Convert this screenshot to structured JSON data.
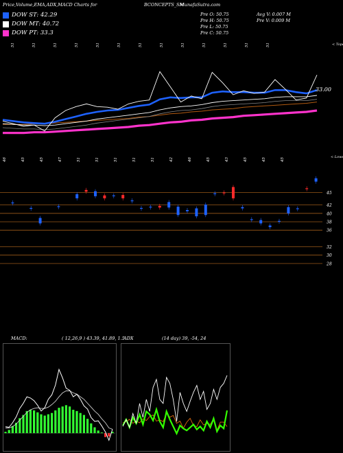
{
  "header": {
    "title": "Price,Volume,EMA,ADX,MACD Charts for",
    "symbol": "BCONCEPTS_SM",
    "site": "MunafaSutra.com",
    "prev_open": "Pre  O: 50.75",
    "prev_high": "Pre  H: 50.75",
    "prev_low": "Pre  L: 50.75",
    "prev_close": "Pre  C: 50.75",
    "avg_vol": "Avg V: 0.007 M",
    "pre_vol": "Pre  V: 0.009 M"
  },
  "legend": [
    {
      "label": "DOW ST: 42.29",
      "color": "#1e62ff"
    },
    {
      "label": "DOW MT: 40.72",
      "color": "#ffffff"
    },
    {
      "label": "DOW PT: 33.3",
      "color": "#ff33cc"
    }
  ],
  "colors": {
    "bg": "#000000",
    "up": "#ff2a2a",
    "down": "#1e62ff",
    "sma": "#ffffff",
    "ema_long": "#ff33cc",
    "ma_brown": "#b25a10",
    "macd_hist": "#33ff33",
    "macd_neg": "#ff3333",
    "grid": "#b86a1e"
  },
  "chart_data": [
    {
      "type": "line",
      "name": "price-ema",
      "title": "",
      "top_labels": [
        "51",
        "51",
        "51",
        "51",
        "51",
        "51",
        "51",
        "51",
        "51",
        "51",
        "51",
        "51",
        "51"
      ],
      "bottom_labels": [
        "46",
        "45",
        "45",
        "47",
        "51",
        "51",
        "51",
        "51",
        "51",
        "42",
        "46",
        "45",
        "43",
        "45",
        "45",
        "45"
      ],
      "top_axis_label": "< Tope",
      "bottom_axis_label": "< Lowes",
      "price_last_label": "33.00",
      "x": [
        0,
        1,
        2,
        3,
        4,
        5,
        6,
        7,
        8,
        9,
        10,
        11,
        12,
        13,
        14,
        15,
        16,
        17,
        18,
        19,
        20,
        21,
        22,
        23,
        24,
        25,
        26,
        27,
        28,
        29,
        30
      ],
      "series": [
        {
          "name": "price",
          "values": [
            41,
            40.6,
            40.2,
            40.4,
            39.5,
            41.5,
            42.6,
            43.2,
            43.6,
            43.2,
            43.1,
            42.8,
            43.6,
            44,
            44.2,
            48.5,
            46.2,
            43.9,
            44.8,
            44.4,
            48.4,
            46.8,
            45,
            45.6,
            45.2,
            45.4,
            47.3,
            45.8,
            44.2,
            44.5,
            48
          ]
        },
        {
          "name": "ema_st",
          "values": [
            41.2,
            41,
            40.8,
            40.7,
            40.6,
            40.9,
            41.3,
            41.7,
            42.1,
            42.4,
            42.6,
            42.7,
            43,
            43.3,
            43.5,
            44.3,
            44.6,
            44.5,
            44.6,
            44.6,
            45.3,
            45.5,
            45.4,
            45.4,
            45.3,
            45.3,
            45.7,
            45.7,
            45.4,
            45.2,
            45.7
          ]
        },
        {
          "name": "sma_mt",
          "values": [
            40.6,
            40.5,
            40.4,
            40.4,
            40.3,
            40.4,
            40.6,
            40.8,
            41,
            41.3,
            41.5,
            41.7,
            41.9,
            42.1,
            42.3,
            42.7,
            43,
            43.2,
            43.3,
            43.5,
            43.8,
            44,
            44.1,
            44.2,
            44.3,
            44.4,
            44.6,
            44.7,
            44.7,
            44.7,
            44.9
          ]
        },
        {
          "name": "ema_pt",
          "values": [
            39.2,
            39.2,
            39.2,
            39.3,
            39.3,
            39.4,
            39.5,
            39.6,
            39.7,
            39.8,
            39.9,
            40,
            40.1,
            40.3,
            40.4,
            40.6,
            40.8,
            40.9,
            41.1,
            41.2,
            41.4,
            41.5,
            41.6,
            41.8,
            41.9,
            42,
            42.1,
            42.2,
            42.3,
            42.4,
            42.6
          ]
        }
      ],
      "ylim": [
        37.5,
        50
      ]
    },
    {
      "type": "bar",
      "name": "candles",
      "title": "",
      "y_ticks": [
        "45",
        "42",
        "40",
        "38",
        "36",
        "32",
        "30",
        "28"
      ],
      "candles": [
        {
          "x": 1,
          "o": 42.6,
          "c": 42.4,
          "up": false
        },
        {
          "x": 3,
          "o": 41.3,
          "c": 41.1,
          "up": false
        },
        {
          "x": 4,
          "o": 38.9,
          "c": 37.6,
          "up": false
        },
        {
          "x": 6,
          "o": 41.7,
          "c": 41.5,
          "up": false
        },
        {
          "x": 8,
          "o": 44.6,
          "c": 43.6,
          "up": false
        },
        {
          "x": 9,
          "o": 45.2,
          "c": 45.6,
          "up": true
        },
        {
          "x": 10,
          "o": 45.3,
          "c": 44.1,
          "up": false
        },
        {
          "x": 11,
          "o": 44.3,
          "c": 43.6,
          "up": true
        },
        {
          "x": 12,
          "o": 44.3,
          "c": 44.1,
          "up": false
        },
        {
          "x": 13,
          "o": 44.4,
          "c": 43.6,
          "up": true
        },
        {
          "x": 14,
          "o": 43.1,
          "c": 42.9,
          "up": false
        },
        {
          "x": 15,
          "o": 41.3,
          "c": 41.1,
          "up": false
        },
        {
          "x": 16,
          "o": 41.6,
          "c": 41.4,
          "up": false
        },
        {
          "x": 17,
          "o": 41.4,
          "c": 41.8,
          "up": true
        },
        {
          "x": 18,
          "o": 42.7,
          "c": 41.4,
          "up": false
        },
        {
          "x": 19,
          "o": 41.6,
          "c": 39.6,
          "up": false
        },
        {
          "x": 20,
          "o": 40.8,
          "c": 40.5,
          "up": false
        },
        {
          "x": 21,
          "o": 41.2,
          "c": 39.3,
          "up": false
        },
        {
          "x": 22,
          "o": 42.1,
          "c": 39.6,
          "up": false
        },
        {
          "x": 23,
          "o": 44.8,
          "c": 44.6,
          "up": false
        },
        {
          "x": 24,
          "o": 45.0,
          "c": 44.8,
          "up": true
        },
        {
          "x": 25,
          "o": 46.3,
          "c": 43.6,
          "up": true
        },
        {
          "x": 26,
          "o": 41.5,
          "c": 41.2,
          "up": false
        },
        {
          "x": 27,
          "o": 38.6,
          "c": 38.4,
          "up": false
        },
        {
          "x": 28,
          "o": 38.4,
          "c": 37.6,
          "up": false
        },
        {
          "x": 29,
          "o": 37.1,
          "c": 36.7,
          "up": false
        },
        {
          "x": 30,
          "o": 38.2,
          "c": 38.0,
          "up": false
        },
        {
          "x": 31,
          "o": 41.5,
          "c": 40.0,
          "up": false
        },
        {
          "x": 32,
          "o": 41.2,
          "c": 41.0,
          "up": false
        },
        {
          "x": 33,
          "o": 45.8,
          "c": 46.0,
          "up": true
        },
        {
          "x": 34,
          "o": 48.4,
          "c": 47.6,
          "up": false
        }
      ],
      "ylim": [
        27,
        50
      ]
    },
    {
      "type": "bar",
      "name": "macd",
      "title": "MACD:",
      "params": "( 12,26,9 ) 43.39, 41.89, 1.5",
      "series": [
        {
          "name": "histogram",
          "values": [
            0.2,
            0.5,
            1.1,
            1.6,
            2.3,
            2.8,
            3.4,
            3.6,
            3.5,
            3.2,
            2.9,
            2.7,
            2.9,
            3.1,
            3.5,
            3.9,
            4.1,
            4.3,
            4.1,
            3.6,
            3.4,
            3.1,
            2.8,
            2.2,
            1.5,
            0.9,
            0.4,
            0.1,
            -0.6,
            -0.5,
            0.2
          ]
        },
        {
          "name": "macd",
          "values": [
            1,
            0.9,
            1.6,
            2.5,
            3.8,
            4.6,
            5.6,
            5.4,
            5,
            4.3,
            3.4,
            3.9,
            5.2,
            5.9,
            7.4,
            9.8,
            8.5,
            6.9,
            6.6,
            5.6,
            6,
            5.2,
            4.2,
            3.7,
            2.4,
            1.8,
            1.9,
            1.1,
            0.2,
            -1.1,
            0.6
          ]
        },
        {
          "name": "signal",
          "values": [
            0.8,
            0.8,
            1,
            1.4,
            2,
            2.6,
            3.2,
            3.6,
            3.8,
            3.9,
            3.8,
            3.8,
            4,
            4.4,
            4.9,
            5.6,
            6.2,
            6.5,
            6.5,
            6.2,
            6,
            5.6,
            5.2,
            4.6,
            4,
            3.4,
            2.9,
            2.2,
            1.6,
            0.8,
            0.6
          ]
        }
      ],
      "ylim": [
        -2,
        13
      ]
    },
    {
      "type": "line",
      "name": "adx",
      "title": "ADX",
      "params": "(14 day) 39, -54, 24",
      "series": [
        {
          "name": "adx",
          "values": [
            22,
            28,
            20,
            30,
            24,
            33,
            23,
            36,
            33,
            27,
            38,
            26,
            20,
            36,
            28,
            21,
            14,
            22,
            19,
            17,
            20,
            23,
            18,
            21,
            17,
            26,
            20,
            29,
            16,
            22,
            19,
            37
          ]
        },
        {
          "name": "plus_di",
          "values": [
            21,
            28,
            20,
            34,
            24,
            44,
            30,
            48,
            36,
            60,
            68,
            48,
            44,
            70,
            64,
            48,
            26,
            55,
            44,
            36,
            46,
            55,
            62,
            48,
            56,
            38,
            44,
            58,
            48,
            60,
            64,
            72
          ]
        },
        {
          "name": "minus_di",
          "values": [
            45,
            47,
            51,
            44,
            48,
            45,
            52,
            49,
            56,
            59,
            48,
            50,
            47,
            62,
            55,
            58,
            44,
            48,
            35,
            46,
            53,
            40,
            38,
            50,
            41,
            44,
            42,
            52,
            31,
            46,
            46,
            38
          ]
        }
      ],
      "ylim": [
        0,
        100
      ]
    }
  ]
}
